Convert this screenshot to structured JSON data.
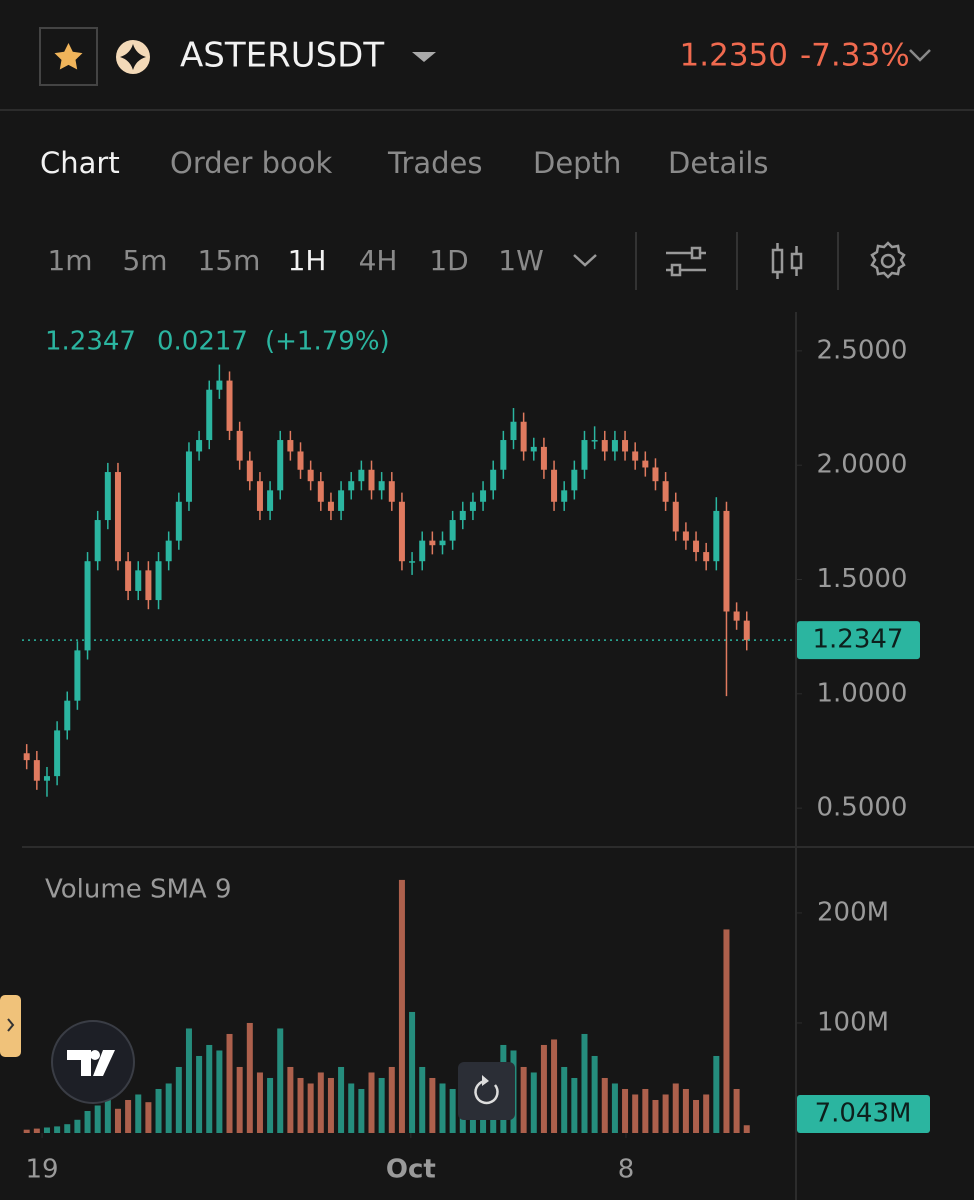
{
  "header": {
    "symbol": "ASTERUSDT",
    "price": "1.2350",
    "change": "-7.33%"
  },
  "tabs": [
    "Chart",
    "Order book",
    "Trades",
    "Depth",
    "Details"
  ],
  "intervals": [
    "1m",
    "5m",
    "15m",
    "1H",
    "4H",
    "1D",
    "1W"
  ],
  "ohlc_info": {
    "close": "1.2347",
    "change": "0.0217",
    "change_pct": "(+1.79%)"
  },
  "volume_label": "Volume SMA 9",
  "chart_data": {
    "type": "candlestick",
    "up_color": "#2bb5a0",
    "down_color": "#e07a5f",
    "xlim": [
      -0.49,
      24.5
    ],
    "xticks": [
      {
        "value": 0,
        "label": "19"
      },
      {
        "value": 12,
        "label": "Oct"
      },
      {
        "value": 19,
        "label": "8"
      }
    ],
    "ylim": [
      0.33,
      2.67
    ],
    "yticks": [
      {
        "value": 2.5,
        "label": "2.5000"
      },
      {
        "value": 2.0,
        "label": "2.0000"
      },
      {
        "value": 1.5,
        "label": "1.5000"
      },
      {
        "value": 1.0,
        "label": "1.0000"
      },
      {
        "value": 0.5,
        "label": "0.5000"
      }
    ],
    "last_price": {
      "value": 1.2347,
      "label": "1.2347"
    },
    "x": [
      -0.5,
      -0.17,
      0.16,
      0.49,
      0.82,
      1.15,
      1.48,
      1.81,
      2.14,
      2.47,
      2.8,
      3.13,
      3.46,
      3.79,
      4.12,
      4.45,
      4.78,
      5.11,
      5.44,
      5.77,
      6.1,
      6.43,
      6.76,
      7.09,
      7.42,
      7.75,
      8.08,
      8.41,
      8.74,
      9.07,
      9.4,
      9.73,
      10.06,
      10.39,
      10.72,
      11.05,
      11.38,
      11.71,
      12.04,
      12.37,
      12.7,
      13.03,
      13.36,
      13.69,
      14.02,
      14.35,
      14.68,
      15.01,
      15.34,
      15.67,
      16.0,
      16.33,
      16.66,
      16.99,
      17.32,
      17.65,
      17.98,
      18.31,
      18.64,
      18.97,
      19.3,
      19.63,
      19.96,
      20.29,
      20.62,
      20.95,
      21.28,
      21.61,
      21.94,
      22.27,
      22.6,
      22.93
    ],
    "open": [
      0.74,
      0.71,
      0.62,
      0.64,
      0.84,
      0.97,
      1.19,
      1.58,
      1.76,
      1.97,
      1.58,
      1.45,
      1.54,
      1.41,
      1.58,
      1.67,
      1.84,
      2.06,
      2.11,
      2.33,
      2.37,
      2.15,
      2.02,
      1.93,
      1.8,
      1.89,
      2.11,
      2.06,
      1.98,
      1.93,
      1.84,
      1.8,
      1.89,
      1.93,
      1.98,
      1.89,
      1.93,
      1.84,
      1.58,
      1.58,
      1.67,
      1.65,
      1.67,
      1.76,
      1.8,
      1.84,
      1.89,
      1.98,
      2.11,
      2.19,
      2.06,
      2.08,
      1.98,
      1.84,
      1.89,
      1.98,
      2.11,
      2.11,
      2.06,
      2.11,
      2.06,
      2.02,
      1.99,
      1.93,
      1.84,
      1.71,
      1.67,
      1.62,
      1.58,
      1.8,
      1.36,
      1.32
    ],
    "high": [
      0.78,
      0.75,
      0.68,
      0.88,
      1.01,
      1.23,
      1.62,
      1.8,
      2.01,
      2.01,
      1.62,
      1.58,
      1.58,
      1.62,
      1.71,
      1.88,
      2.1,
      2.15,
      2.37,
      2.44,
      2.41,
      2.19,
      2.06,
      1.97,
      1.93,
      2.15,
      2.15,
      2.1,
      2.02,
      1.97,
      1.88,
      1.93,
      1.97,
      2.02,
      2.02,
      1.97,
      1.97,
      1.88,
      1.62,
      1.71,
      1.71,
      1.71,
      1.8,
      1.84,
      1.88,
      1.93,
      2.02,
      2.15,
      2.25,
      2.23,
      2.12,
      2.12,
      2.02,
      1.93,
      2.02,
      2.15,
      2.17,
      2.15,
      2.15,
      2.15,
      2.1,
      2.06,
      2.03,
      1.97,
      1.88,
      1.75,
      1.71,
      1.66,
      1.86,
      1.84,
      1.4,
      1.36
    ],
    "low": [
      0.67,
      0.58,
      0.55,
      0.6,
      0.8,
      0.93,
      1.15,
      1.54,
      1.72,
      1.54,
      1.41,
      1.41,
      1.37,
      1.37,
      1.54,
      1.63,
      1.8,
      2.02,
      2.07,
      2.29,
      2.11,
      1.98,
      1.89,
      1.76,
      1.76,
      1.85,
      2.02,
      1.94,
      1.89,
      1.8,
      1.76,
      1.76,
      1.85,
      1.89,
      1.85,
      1.85,
      1.8,
      1.54,
      1.52,
      1.54,
      1.61,
      1.61,
      1.63,
      1.72,
      1.76,
      1.8,
      1.85,
      1.94,
      2.07,
      2.02,
      2.02,
      1.94,
      1.8,
      1.8,
      1.85,
      1.94,
      2.07,
      2.02,
      2.02,
      2.02,
      1.98,
      1.95,
      1.89,
      1.8,
      1.67,
      1.63,
      1.58,
      1.54,
      1.54,
      0.99,
      1.28,
      1.19
    ],
    "close": [
      0.71,
      0.62,
      0.64,
      0.84,
      0.97,
      1.19,
      1.58,
      1.76,
      1.97,
      1.58,
      1.45,
      1.54,
      1.41,
      1.58,
      1.67,
      1.84,
      2.06,
      2.11,
      2.33,
      2.37,
      2.15,
      2.02,
      1.93,
      1.8,
      1.89,
      2.11,
      2.06,
      1.98,
      1.93,
      1.84,
      1.8,
      1.89,
      1.93,
      1.98,
      1.89,
      1.93,
      1.84,
      1.58,
      1.58,
      1.67,
      1.65,
      1.67,
      1.76,
      1.8,
      1.84,
      1.89,
      1.98,
      2.11,
      2.19,
      2.06,
      2.08,
      1.98,
      1.84,
      1.89,
      1.98,
      2.11,
      2.11,
      2.06,
      2.11,
      2.06,
      2.02,
      1.99,
      1.93,
      1.84,
      1.71,
      1.67,
      1.62,
      1.58,
      1.8,
      1.36,
      1.32,
      1.2347
    ],
    "volume": [
      3000000,
      4000000,
      5000000,
      6000000,
      8000000,
      12000000,
      20000000,
      25000000,
      30000000,
      22000000,
      30000000,
      35000000,
      28000000,
      40000000,
      45000000,
      60000000,
      95000000,
      70000000,
      80000000,
      75000000,
      90000000,
      60000000,
      100000000,
      55000000,
      50000000,
      95000000,
      60000000,
      50000000,
      45000000,
      55000000,
      50000000,
      60000000,
      45000000,
      40000000,
      55000000,
      50000000,
      60000000,
      230000000,
      110000000,
      60000000,
      50000000,
      45000000,
      40000000,
      35000000,
      45000000,
      50000000,
      55000000,
      80000000,
      75000000,
      60000000,
      55000000,
      80000000,
      85000000,
      60000000,
      50000000,
      90000000,
      70000000,
      50000000,
      45000000,
      40000000,
      35000000,
      40000000,
      30000000,
      35000000,
      45000000,
      40000000,
      30000000,
      35000000,
      70000000,
      185000000,
      40000000,
      7043000
    ],
    "vlim": [
      0,
      259000000
    ],
    "vticks": [
      {
        "value": 200000000,
        "label": "200M"
      },
      {
        "value": 100000000,
        "label": "100M"
      }
    ],
    "last_volume": {
      "value": 7043000,
      "label": "7.043M"
    }
  }
}
